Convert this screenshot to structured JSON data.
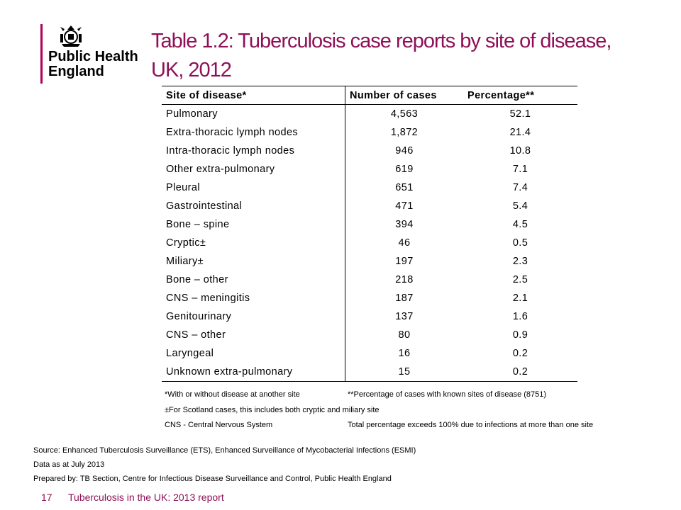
{
  "logo": {
    "line1": "Public Health",
    "line2": "England"
  },
  "title": "Table 1.2: Tuberculosis case reports by site of disease, UK, 2012",
  "table": {
    "headers": [
      "Site of disease*",
      "Number of cases",
      "Percentage**"
    ],
    "rows": [
      [
        "Pulmonary",
        "4,563",
        "52.1"
      ],
      [
        "Extra-thoracic lymph nodes",
        "1,872",
        "21.4"
      ],
      [
        "Intra-thoracic lymph nodes",
        "946",
        "10.8"
      ],
      [
        "Other extra-pulmonary",
        "619",
        "7.1"
      ],
      [
        "Pleural",
        "651",
        "7.4"
      ],
      [
        "Gastrointestinal",
        "471",
        "5.4"
      ],
      [
        "Bone – spine",
        "394",
        "4.5"
      ],
      [
        "Cryptic±",
        "46",
        "0.5"
      ],
      [
        "Miliary±",
        "197",
        "2.3"
      ],
      [
        "Bone – other",
        "218",
        "2.5"
      ],
      [
        "CNS – meningitis",
        "187",
        "2.1"
      ],
      [
        "Genitourinary",
        "137",
        "1.6"
      ],
      [
        "CNS – other",
        "80",
        "0.9"
      ],
      [
        "Laryngeal",
        "16",
        "0.2"
      ],
      [
        "Unknown extra-pulmonary",
        "15",
        "0.2"
      ]
    ]
  },
  "footnotes": {
    "with_without": "*With or without disease at another site",
    "percentage": "**Percentage of cases with known sites of disease (8751)",
    "scotland": "±For Scotland cases, this includes both cryptic and miliary site",
    "cns": "CNS - Central Nervous System",
    "total": "Total percentage exceeds 100% due to infections at more than one site"
  },
  "source": {
    "line1": "Source: Enhanced Tuberculosis Surveillance (ETS), Enhanced Surveillance of Mycobacterial Infections (ESMI)",
    "line2": "Data as at July 2013",
    "line3": "Prepared by: TB Section, Centre for Infectious Disease Surveillance and Control, Public Health England"
  },
  "footer": {
    "page_number": "17",
    "report_title": "Tuberculosis in the UK: 2013 report"
  },
  "colors": {
    "brand": "#8e1157",
    "logo_bar": "#b0005a"
  }
}
